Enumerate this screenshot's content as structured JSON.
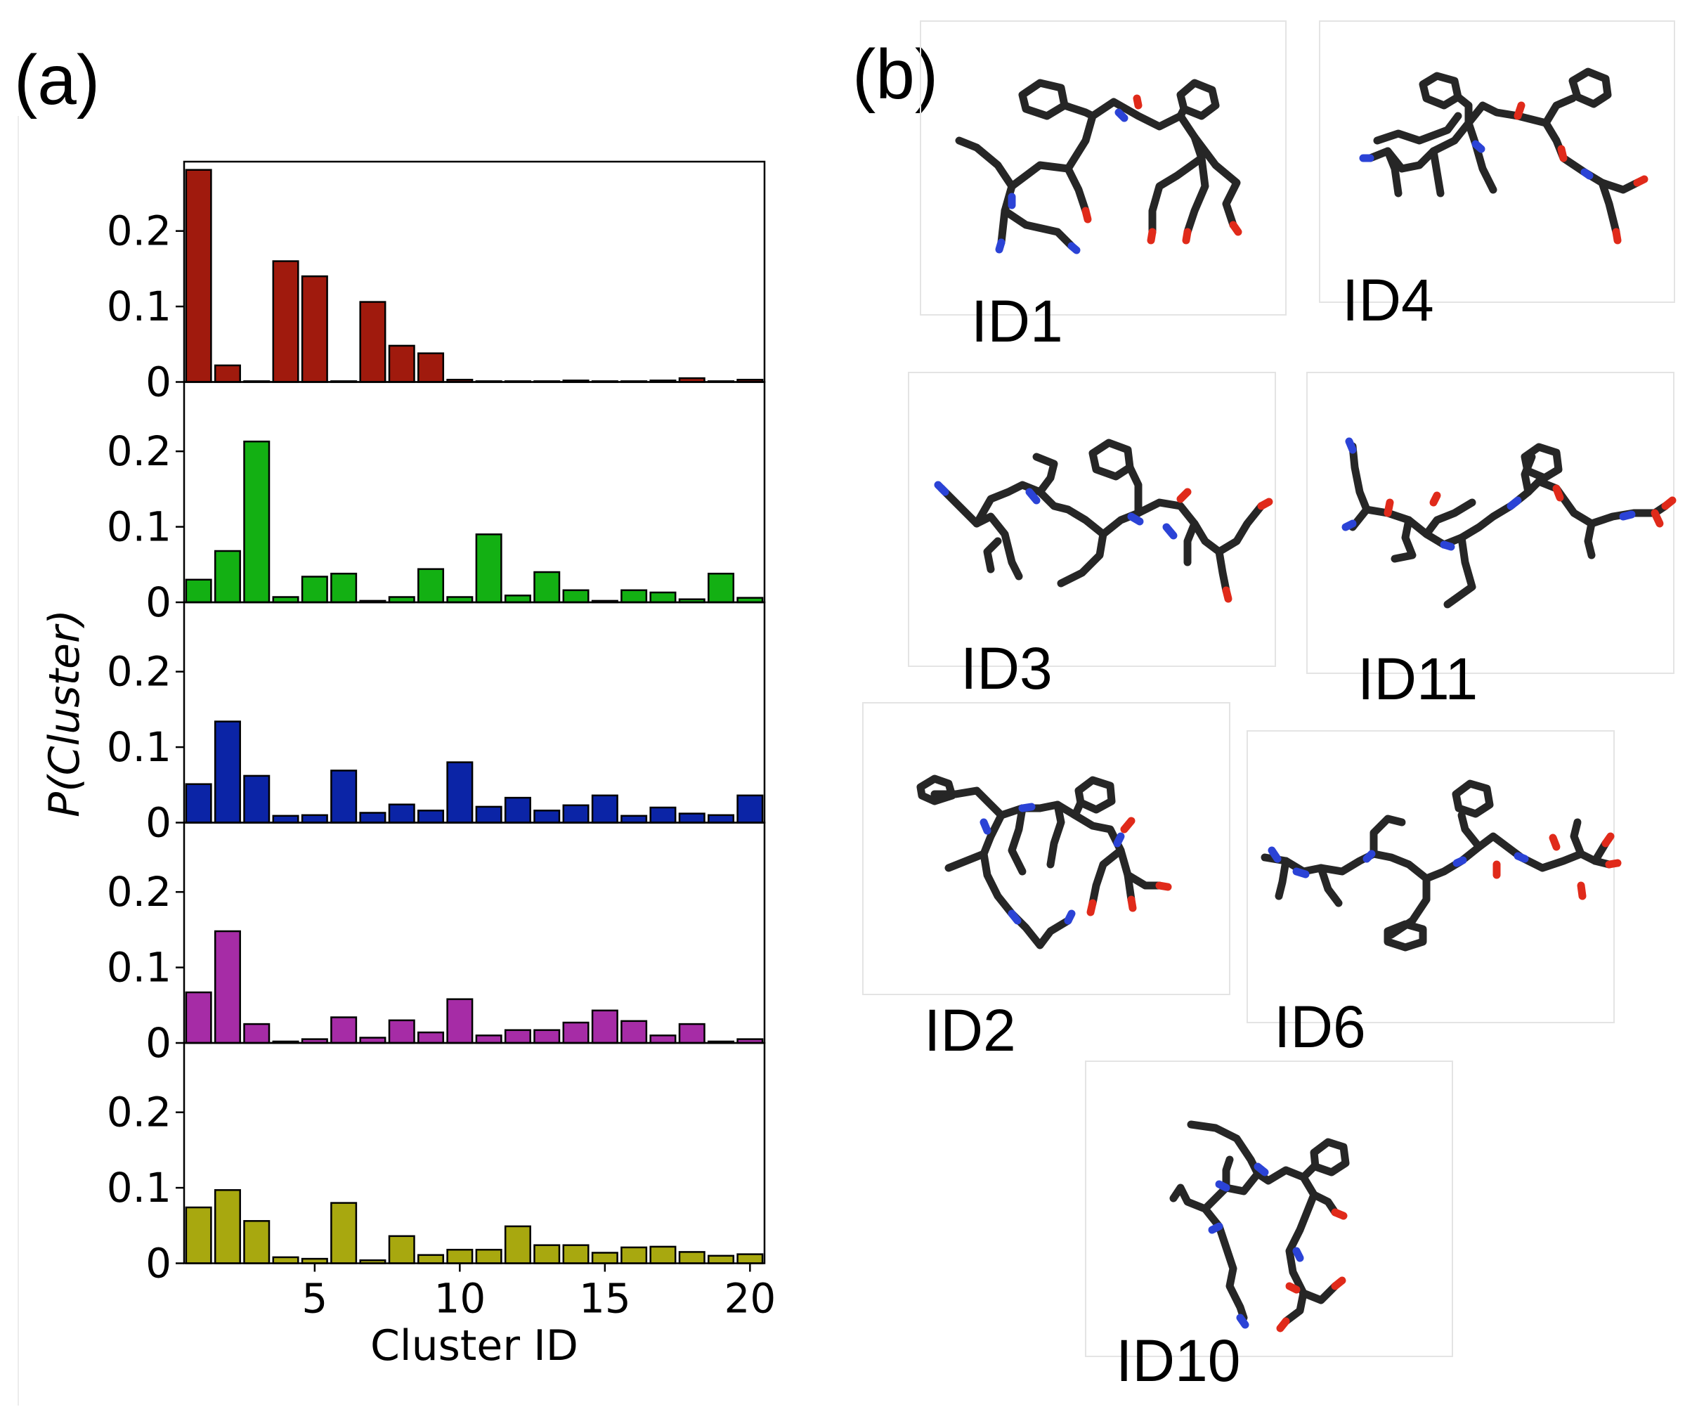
{
  "panel_labels": {
    "a": "(a)",
    "b": "(b)"
  },
  "colors": {
    "series": [
      "#a01a0d",
      "#13b013",
      "#0b24a6",
      "#a62ca6",
      "#a8a80f"
    ],
    "carbon": "#262626",
    "nitrogen": "#2b43d6",
    "oxygen": "#e02a1a"
  },
  "chart_data": {
    "type": "bar",
    "layout": "stacked-subplots",
    "title": "",
    "xlabel": "Cluster ID",
    "ylabel": "P(Cluster)",
    "ylim": [
      0,
      0.29
    ],
    "yticks": [
      0,
      0.1,
      0.2
    ],
    "ytick_labels": [
      "0",
      "0.1",
      "0.2"
    ],
    "xlim": [
      0.5,
      20.5
    ],
    "xticks": [
      5,
      10,
      15,
      20
    ],
    "xtick_labels": [
      "5",
      "10",
      "15",
      "20"
    ],
    "categories": [
      1,
      2,
      3,
      4,
      5,
      6,
      7,
      8,
      9,
      10,
      11,
      12,
      13,
      14,
      15,
      16,
      17,
      18,
      19,
      20
    ],
    "series": [
      {
        "name": "panel 1 (red)",
        "color": "#a01a0d",
        "values": [
          0.281,
          0.022,
          0.001,
          0.16,
          0.14,
          0.001,
          0.106,
          0.048,
          0.038,
          0.003,
          0.001,
          0.001,
          0.001,
          0.002,
          0.001,
          0.001,
          0.002,
          0.005,
          0.001,
          0.003
        ]
      },
      {
        "name": "panel 2 (green)",
        "color": "#13b013",
        "values": [
          0.03,
          0.068,
          0.213,
          0.007,
          0.034,
          0.038,
          0.002,
          0.007,
          0.044,
          0.007,
          0.09,
          0.009,
          0.04,
          0.016,
          0.002,
          0.016,
          0.013,
          0.004,
          0.038,
          0.006
        ]
      },
      {
        "name": "panel 3 (blue)",
        "color": "#0b24a6",
        "values": [
          0.051,
          0.134,
          0.062,
          0.009,
          0.01,
          0.069,
          0.013,
          0.024,
          0.016,
          0.08,
          0.021,
          0.033,
          0.016,
          0.023,
          0.036,
          0.009,
          0.02,
          0.012,
          0.01,
          0.036
        ]
      },
      {
        "name": "panel 4 (purple)",
        "color": "#a62ca6",
        "values": [
          0.067,
          0.148,
          0.025,
          0.002,
          0.005,
          0.034,
          0.007,
          0.03,
          0.014,
          0.058,
          0.01,
          0.017,
          0.017,
          0.027,
          0.043,
          0.029,
          0.01,
          0.025,
          0.002,
          0.005
        ]
      },
      {
        "name": "panel 5 (olive)",
        "color": "#a8a80f",
        "values": [
          0.074,
          0.097,
          0.056,
          0.008,
          0.006,
          0.08,
          0.004,
          0.036,
          0.011,
          0.018,
          0.018,
          0.049,
          0.024,
          0.024,
          0.014,
          0.021,
          0.022,
          0.015,
          0.01,
          0.012
        ]
      }
    ]
  },
  "structures": [
    {
      "id": "ID1"
    },
    {
      "id": "ID4"
    },
    {
      "id": "ID3"
    },
    {
      "id": "ID11"
    },
    {
      "id": "ID2"
    },
    {
      "id": "ID6"
    },
    {
      "id": "ID10"
    }
  ]
}
